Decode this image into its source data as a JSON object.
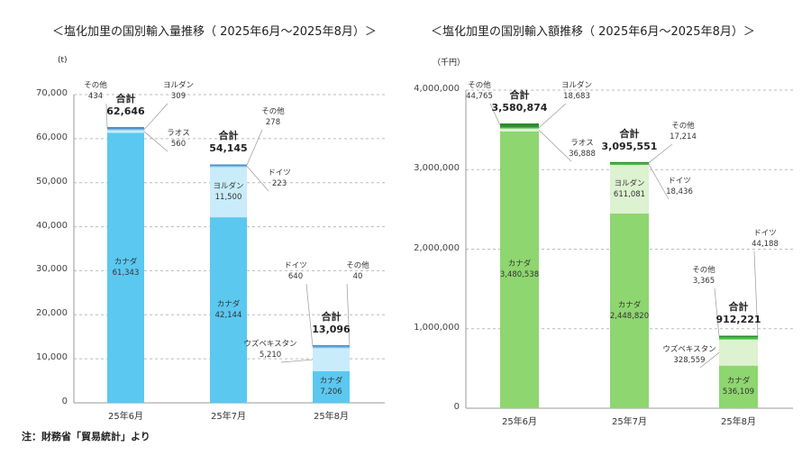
{
  "footnote": "注：財務省「貿易統計」より",
  "chart_data": [
    {
      "type": "bar",
      "stacked": true,
      "title": "＜塩化加里の国別輸入量推移（ 2025年6月～2025年8月）＞",
      "unit": "(t)",
      "ylim": [
        0,
        70000
      ],
      "yticks": [
        "0",
        "10,000",
        "20,000",
        "30,000",
        "40,000",
        "50,000",
        "60,000",
        "70,000"
      ],
      "grid": true,
      "categories": [
        "25年6月",
        "25年7月",
        "25年8月"
      ],
      "total_label": "合計",
      "totals": [
        "62,646",
        "54,145",
        "13,096"
      ],
      "stacks": [
        [
          {
            "name": "カナダ",
            "value": 61343,
            "label": "61,343",
            "color": "#5bc8f0"
          },
          {
            "name": "ラオス",
            "value": 560,
            "label": "560",
            "color": "#c9ecfa"
          },
          {
            "name": "ヨルダン",
            "value": 309,
            "label": "309",
            "color": "#7fb8e0"
          },
          {
            "name": "その他",
            "value": 434,
            "label": "434",
            "color": "#4a90c8"
          }
        ],
        [
          {
            "name": "カナダ",
            "value": 42144,
            "label": "42,144",
            "color": "#5bc8f0"
          },
          {
            "name": "ヨルダン",
            "value": 11500,
            "label": "11,500",
            "color": "#c9ecfa"
          },
          {
            "name": "ドイツ",
            "value": 223,
            "label": "223",
            "color": "#7fb8e0"
          },
          {
            "name": "その他",
            "value": 278,
            "label": "278",
            "color": "#4a90c8"
          }
        ],
        [
          {
            "name": "カナダ",
            "value": 7206,
            "label": "7,206",
            "color": "#5bc8f0"
          },
          {
            "name": "ウズベキスタン",
            "value": 5210,
            "label": "5,210",
            "color": "#c9ecfa"
          },
          {
            "name": "ドイツ",
            "value": 640,
            "label": "640",
            "color": "#7fb8e0"
          },
          {
            "name": "その他",
            "value": 40,
            "label": "40",
            "color": "#4a90c8"
          }
        ]
      ]
    },
    {
      "type": "bar",
      "stacked": true,
      "title": "＜塩化加里の国別輸入額推移（ 2025年6月～2025年8月）＞",
      "unit": "（千円）",
      "ylim": [
        0,
        4000000
      ],
      "yticks": [
        "0",
        "1,000,000",
        "2,000,000",
        "3,000,000",
        "4,000,000"
      ],
      "grid": true,
      "categories": [
        "25年6月",
        "25年7月",
        "25年8月"
      ],
      "total_label": "合計",
      "totals": [
        "3,580,874",
        "3,095,551",
        "912,221"
      ],
      "stacks": [
        [
          {
            "name": "カナダ",
            "value": 3480538,
            "label": "3,480,538",
            "color": "#8ed66f"
          },
          {
            "name": "ラオス",
            "value": 36888,
            "label": "36,888",
            "color": "#dcf2d0"
          },
          {
            "name": "ヨルダン",
            "value": 18683,
            "label": "18,683",
            "color": "#44b844"
          },
          {
            "name": "その他",
            "value": 44765,
            "label": "44,765",
            "color": "#2f8a2f"
          }
        ],
        [
          {
            "name": "カナダ",
            "value": 2448820,
            "label": "2,448,820",
            "color": "#8ed66f"
          },
          {
            "name": "ヨルダン",
            "value": 611081,
            "label": "611,081",
            "color": "#dcf2d0"
          },
          {
            "name": "ドイツ",
            "value": 18436,
            "label": "18,436",
            "color": "#44b844"
          },
          {
            "name": "その他",
            "value": 17214,
            "label": "17,214",
            "color": "#2f8a2f"
          }
        ],
        [
          {
            "name": "カナダ",
            "value": 536109,
            "label": "536,109",
            "color": "#8ed66f"
          },
          {
            "name": "ウズベキスタン",
            "value": 328559,
            "label": "328,559",
            "color": "#dcf2d0"
          },
          {
            "name": "ドイツ",
            "value": 44188,
            "label": "44,188",
            "color": "#44c044"
          },
          {
            "name": "その他",
            "value": 3365,
            "label": "3,365",
            "color": "#2f8a2f"
          }
        ]
      ]
    }
  ]
}
